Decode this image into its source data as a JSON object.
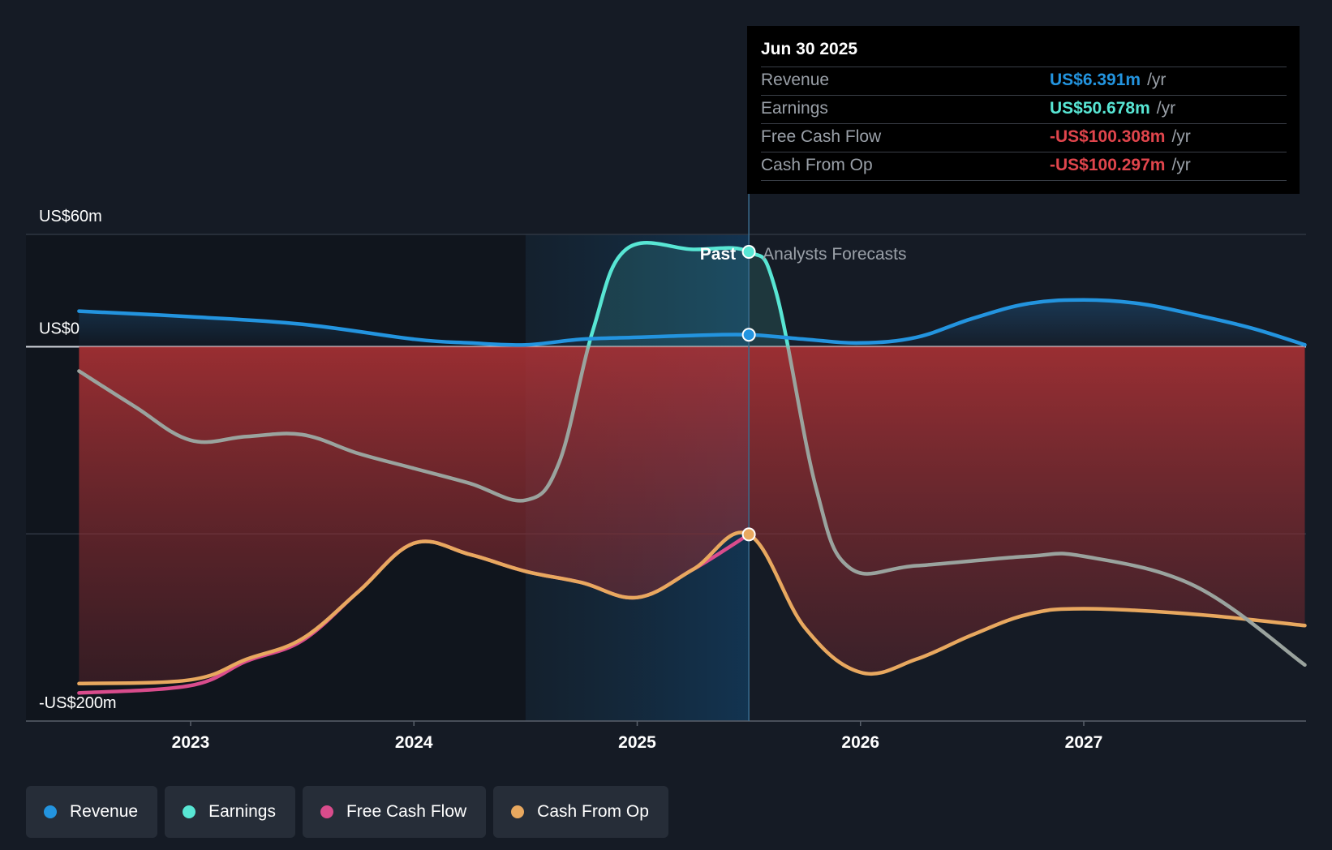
{
  "chart_data": {
    "type": "area",
    "y_axis": {
      "top_label": "US$60m",
      "zero_label": "US$0",
      "bottom_label": "-US$200m",
      "ylim": [
        -200,
        60
      ],
      "gridlines": [
        60,
        0,
        -100,
        -200
      ]
    },
    "x_axis": {
      "ticks": [
        "2023",
        "2024",
        "2025",
        "2026",
        "2027"
      ],
      "tick_values": [
        2023,
        2024,
        2025,
        2026,
        2027
      ],
      "xlim": [
        2022.27,
        2027.99
      ]
    },
    "past_label": "Past",
    "forecast_label": "Analysts Forecasts",
    "past_range": [
      2024.5,
      2025.5
    ],
    "series": [
      {
        "name": "Revenue",
        "color": "#2394df",
        "values": [
          [
            2022.5,
            19
          ],
          [
            2023,
            16
          ],
          [
            2023.5,
            12
          ],
          [
            2024,
            4
          ],
          [
            2024.25,
            2
          ],
          [
            2024.5,
            1
          ],
          [
            2024.75,
            4
          ],
          [
            2025,
            5
          ],
          [
            2025.25,
            6
          ],
          [
            2025.5,
            6.39
          ],
          [
            2025.75,
            4
          ],
          [
            2026,
            2
          ],
          [
            2026.25,
            5
          ],
          [
            2026.5,
            15
          ],
          [
            2026.75,
            23
          ],
          [
            2027,
            25
          ],
          [
            2027.25,
            23
          ],
          [
            2027.5,
            17
          ],
          [
            2027.75,
            10
          ],
          [
            2027.99,
            1
          ]
        ]
      },
      {
        "name": "Earnings",
        "color": "#58e6d4",
        "values": [
          [
            2022.5,
            -13
          ],
          [
            2022.75,
            -32
          ],
          [
            2023,
            -50
          ],
          [
            2023.25,
            -48
          ],
          [
            2023.5,
            -47
          ],
          [
            2023.75,
            -57
          ],
          [
            2024,
            -65
          ],
          [
            2024.25,
            -73
          ],
          [
            2024.5,
            -82
          ],
          [
            2024.65,
            -62
          ],
          [
            2024.8,
            8
          ],
          [
            2024.95,
            52
          ],
          [
            2025.25,
            52
          ],
          [
            2025.5,
            50.68
          ],
          [
            2025.62,
            30
          ],
          [
            2025.8,
            -75
          ],
          [
            2025.95,
            -118
          ],
          [
            2026.25,
            -117
          ],
          [
            2026.75,
            -112
          ],
          [
            2027,
            -112
          ],
          [
            2027.5,
            -128
          ],
          [
            2027.99,
            -170
          ]
        ]
      },
      {
        "name": "Free Cash Flow",
        "color": "#d94c8c",
        "values": [
          [
            2022.5,
            -185
          ],
          [
            2023,
            -181
          ],
          [
            2023.25,
            -168
          ],
          [
            2023.5,
            -157
          ],
          [
            2023.75,
            -131
          ],
          [
            2024,
            -105
          ],
          [
            2024.25,
            -111
          ],
          [
            2024.5,
            -120
          ],
          [
            2024.75,
            -126
          ],
          [
            2025,
            -134
          ],
          [
            2025.25,
            -119
          ],
          [
            2025.5,
            -100.31
          ]
        ]
      },
      {
        "name": "Cash From Op",
        "color": "#e8a85f",
        "values": [
          [
            2022.5,
            -180
          ],
          [
            2023,
            -178
          ],
          [
            2023.25,
            -167
          ],
          [
            2023.5,
            -156
          ],
          [
            2023.75,
            -131
          ],
          [
            2024,
            -105
          ],
          [
            2024.25,
            -111
          ],
          [
            2024.5,
            -120
          ],
          [
            2024.75,
            -126
          ],
          [
            2025,
            -134
          ],
          [
            2025.25,
            -119
          ],
          [
            2025.5,
            -100.3
          ],
          [
            2025.75,
            -150
          ],
          [
            2026,
            -174
          ],
          [
            2026.25,
            -167
          ],
          [
            2026.5,
            -154
          ],
          [
            2026.75,
            -143
          ],
          [
            2027,
            -140
          ],
          [
            2027.5,
            -143
          ],
          [
            2027.99,
            -149
          ]
        ]
      }
    ]
  },
  "tooltip": {
    "date": "Jun 30 2025",
    "rows": [
      {
        "label": "Revenue",
        "value": "US$6.391m",
        "unit": "/yr",
        "color": "#2394df"
      },
      {
        "label": "Earnings",
        "value": "US$50.678m",
        "unit": "/yr",
        "color": "#58e6d4"
      },
      {
        "label": "Free Cash Flow",
        "value": "-US$100.308m",
        "unit": "/yr",
        "color": "#e0454c"
      },
      {
        "label": "Cash From Op",
        "value": "-US$100.297m",
        "unit": "/yr",
        "color": "#e0454c"
      }
    ]
  },
  "legend": [
    {
      "label": "Revenue",
      "color": "#2394df"
    },
    {
      "label": "Earnings",
      "color": "#58e6d4"
    },
    {
      "label": "Free Cash Flow",
      "color": "#d94c8c"
    },
    {
      "label": "Cash From Op",
      "color": "#e8a85f"
    }
  ]
}
